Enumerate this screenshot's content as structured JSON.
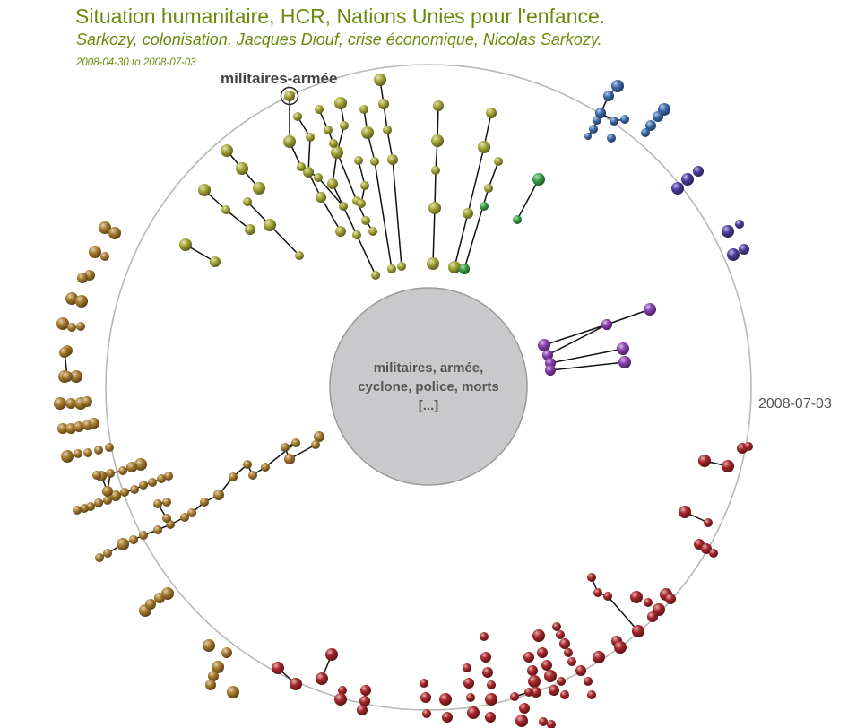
{
  "header": {
    "title": "Situation humanitaire, HCR, Nations Unies pour l'enfance.",
    "subtitle": "Sarkozy, colonisation, Jacques Diouf, crise économique, Nicolas Sarkozy.",
    "date_start": "2008-04-30",
    "date_sep": "to",
    "date_end": "2008-07-03"
  },
  "colors": {
    "title": "#6b8a0a",
    "ring": "#b8b8b8",
    "center_fill": "#c9c9cb",
    "center_stroke": "#999999",
    "olive": "#a6a836",
    "green": "#3ea248",
    "blue": "#3d6cae",
    "indigo": "#4c3fa0",
    "violet": "#8a3fb0",
    "red": "#a8262a",
    "brown": "#a87c2e"
  },
  "focus_label": "militaires-armée",
  "date_marker": "2008-07-03",
  "center_label": "militaires, armée, cyclone, police, morts [...]"
}
